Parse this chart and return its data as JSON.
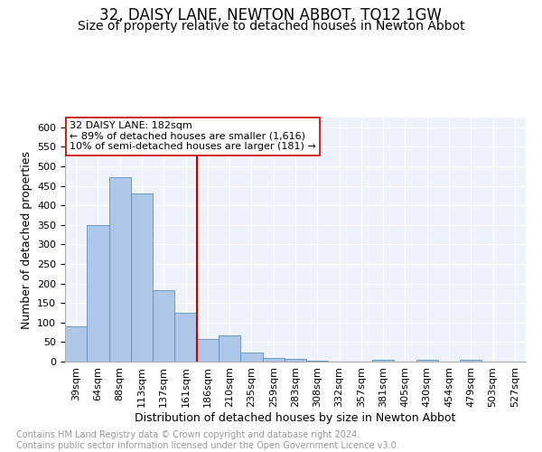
{
  "title": "32, DAISY LANE, NEWTON ABBOT, TQ12 1GW",
  "subtitle": "Size of property relative to detached houses in Newton Abbot",
  "xlabel": "Distribution of detached houses by size in Newton Abbot",
  "ylabel": "Number of detached properties",
  "bin_labels": [
    "39sqm",
    "64sqm",
    "88sqm",
    "113sqm",
    "137sqm",
    "161sqm",
    "186sqm",
    "210sqm",
    "235sqm",
    "259sqm",
    "283sqm",
    "308sqm",
    "332sqm",
    "357sqm",
    "381sqm",
    "405sqm",
    "430sqm",
    "454sqm",
    "479sqm",
    "503sqm",
    "527sqm"
  ],
  "bar_heights": [
    90,
    350,
    472,
    430,
    184,
    125,
    57,
    68,
    23,
    10,
    6,
    2,
    0,
    0,
    5,
    0,
    5,
    0,
    5,
    0,
    0
  ],
  "bar_color": "#aec6e8",
  "bar_edge_color": "#5a8fc2",
  "vline_x_index": 6,
  "vline_color": "#cc0000",
  "annotation_text": "32 DAISY LANE: 182sqm\n← 89% of detached houses are smaller (1,616)\n10% of semi-detached houses are larger (181) →",
  "annotation_box_color": "#ffffff",
  "annotation_box_edge": "#cc0000",
  "ylim": [
    0,
    625
  ],
  "yticks": [
    0,
    50,
    100,
    150,
    200,
    250,
    300,
    350,
    400,
    450,
    500,
    550,
    600
  ],
  "background_color": "#eef2fa",
  "footer_text": "Contains HM Land Registry data © Crown copyright and database right 2024.\nContains public sector information licensed under the Open Government Licence v3.0.",
  "title_fontsize": 12,
  "subtitle_fontsize": 10,
  "xlabel_fontsize": 9,
  "ylabel_fontsize": 9,
  "tick_fontsize": 8,
  "annotation_fontsize": 8,
  "footer_fontsize": 7
}
